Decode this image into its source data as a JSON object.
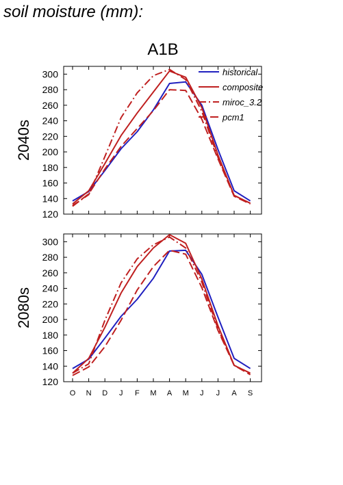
{
  "page_title": "soil moisture (mm):",
  "scenario_title": "A1B",
  "colors": {
    "historical": "#1f1fbf",
    "models": "#bf1f1f"
  },
  "chart_data": [
    {
      "type": "line",
      "panel_label": "2040s",
      "categories": [
        "O",
        "N",
        "D",
        "J",
        "F",
        "M",
        "A",
        "M",
        "J",
        "J",
        "A",
        "S"
      ],
      "ylim": [
        120,
        310
      ],
      "yticks": [
        120,
        140,
        160,
        180,
        200,
        220,
        240,
        260,
        280,
        300
      ],
      "legend": "top-right",
      "grid": false,
      "series": [
        {
          "name": "historical",
          "style": "solid",
          "color": "#1f1fbf",
          "values": [
            137,
            149,
            176,
            204,
            226,
            254,
            288,
            290,
            260,
            203,
            150,
            137
          ]
        },
        {
          "name": "composite",
          "style": "solid",
          "color": "#bf1f1f",
          "values": [
            133,
            150,
            185,
            221,
            250,
            277,
            304,
            296,
            257,
            196,
            144,
            134
          ]
        },
        {
          "name": "miroc_3.2",
          "style": "dashdot",
          "color": "#bf1f1f",
          "values": [
            131,
            145,
            194,
            244,
            276,
            298,
            306,
            293,
            252,
            193,
            144,
            134
          ]
        },
        {
          "name": "pcm1",
          "style": "dashed",
          "color": "#bf1f1f",
          "values": [
            130,
            146,
            178,
            207,
            230,
            253,
            280,
            279,
            242,
            191,
            143,
            133
          ]
        }
      ]
    },
    {
      "type": "line",
      "panel_label": "2080s",
      "categories": [
        "O",
        "N",
        "D",
        "J",
        "F",
        "M",
        "A",
        "M",
        "J",
        "J",
        "A",
        "S"
      ],
      "ylim": [
        120,
        310
      ],
      "yticks": [
        120,
        140,
        160,
        180,
        200,
        220,
        240,
        260,
        280,
        300
      ],
      "grid": false,
      "series": [
        {
          "name": "historical",
          "style": "solid",
          "color": "#1f1fbf",
          "values": [
            137,
            149,
            176,
            204,
            226,
            253,
            288,
            289,
            258,
            203,
            150,
            137
          ]
        },
        {
          "name": "composite",
          "style": "solid",
          "color": "#bf1f1f",
          "values": [
            131,
            150,
            190,
            234,
            268,
            292,
            309,
            298,
            252,
            192,
            141,
            131
          ]
        },
        {
          "name": "miroc_3.2",
          "style": "dashdot",
          "color": "#bf1f1f",
          "values": [
            131,
            143,
            199,
            247,
            278,
            296,
            306,
            292,
            248,
            188,
            141,
            131
          ]
        },
        {
          "name": "pcm1",
          "style": "dashed",
          "color": "#bf1f1f",
          "values": [
            128,
            139,
            165,
            199,
            238,
            268,
            289,
            284,
            241,
            186,
            141,
            129
          ]
        }
      ]
    }
  ]
}
